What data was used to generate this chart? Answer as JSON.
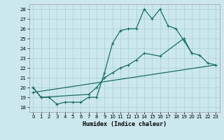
{
  "xlabel": "Humidex (Indice chaleur)",
  "background_color": "#cce8ee",
  "grid_color": "#aacdd5",
  "line_color": "#1a6e5e",
  "xlim": [
    -0.5,
    23.5
  ],
  "ylim": [
    17.5,
    28.5
  ],
  "xticks": [
    0,
    1,
    2,
    3,
    4,
    5,
    6,
    7,
    8,
    9,
    10,
    11,
    12,
    13,
    14,
    15,
    16,
    17,
    18,
    19,
    20,
    21,
    22,
    23
  ],
  "yticks": [
    18,
    19,
    20,
    21,
    22,
    23,
    24,
    25,
    26,
    27,
    28
  ],
  "line1_x": [
    0,
    1,
    2,
    3,
    4,
    5,
    6,
    7,
    8,
    9,
    10,
    11,
    12,
    13,
    14,
    15,
    16,
    17,
    18,
    19,
    20
  ],
  "line1_y": [
    20.0,
    19.0,
    19.0,
    18.3,
    18.5,
    18.5,
    18.5,
    19.0,
    19.0,
    21.5,
    24.5,
    25.8,
    26.0,
    26.0,
    28.0,
    27.0,
    28.0,
    26.3,
    26.0,
    24.8,
    23.5
  ],
  "line2_x": [
    0,
    1,
    7,
    8,
    9,
    10,
    11,
    12,
    13,
    14,
    16,
    19,
    20,
    21,
    22,
    23
  ],
  "line2_y": [
    20.0,
    19.0,
    19.3,
    20.0,
    21.0,
    21.5,
    22.0,
    22.3,
    22.8,
    23.5,
    23.2,
    25.0,
    23.5,
    23.3,
    22.5,
    22.3
  ],
  "line3_x": [
    0,
    23
  ],
  "line3_y": [
    19.5,
    22.3
  ]
}
